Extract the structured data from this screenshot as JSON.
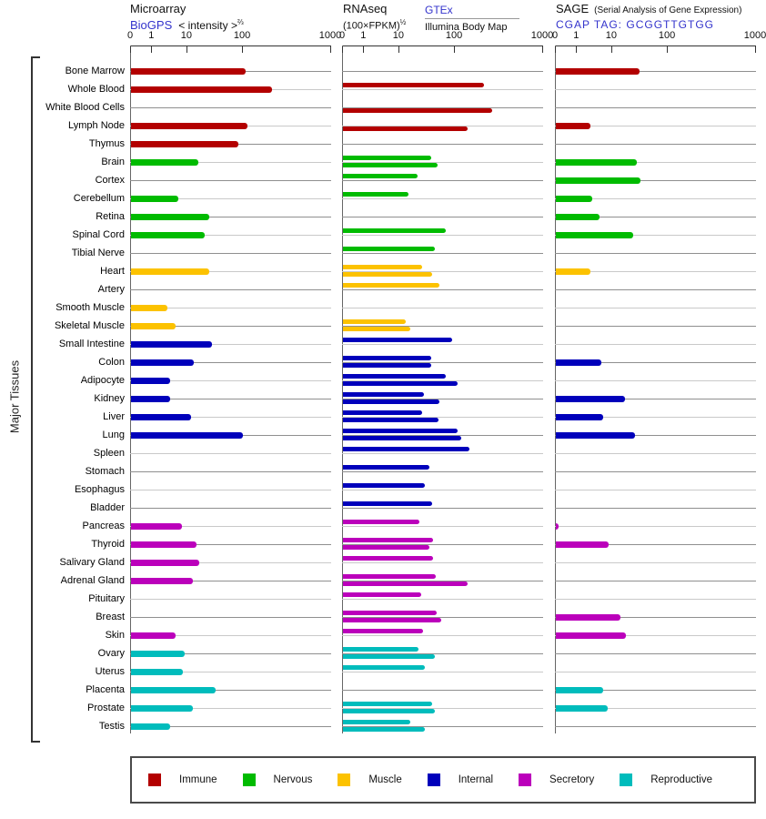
{
  "y_axis": {
    "title": "Major Tissues"
  },
  "panels": {
    "microarray": {
      "title": "Microarray",
      "source_link": "BioGPS",
      "measure": "< intensity >",
      "measure_exponent": "⅔"
    },
    "rnaseq": {
      "title": "RNAseq",
      "measure": "(100×FPKM)",
      "measure_exponent": "½",
      "source_link_1": "GTEx",
      "source_2": "Illumina Body Map"
    },
    "sage": {
      "title": "SAGE",
      "subtitle": "(Serial Analysis of Gene Expression)",
      "tag_link": "CGAP TAG: GCGGTTGTGG"
    }
  },
  "colors": {
    "link": "#3333cc",
    "axis": "#333333",
    "grid_dark": "#8f8f8f",
    "grid_light": "#c9c9c9",
    "groups": {
      "Immune": "#b30000",
      "Nervous": "#00bb00",
      "Muscle": "#fcc200",
      "Internal": "#0000bb",
      "Secretory": "#bb00bb",
      "Reproductive": "#00bcbc"
    }
  },
  "legend": [
    {
      "label": "Immune",
      "color": "#b30000"
    },
    {
      "label": "Nervous",
      "color": "#00bb00"
    },
    {
      "label": "Muscle",
      "color": "#fcc200"
    },
    {
      "label": "Internal",
      "color": "#0000bb"
    },
    {
      "label": "Secretory",
      "color": "#bb00bb"
    },
    {
      "label": "Reproductive",
      "color": "#00bcbc"
    }
  ],
  "chart_data": {
    "type": "bar",
    "orientation": "horizontal",
    "scale": "power (non-linear log-like axis)",
    "xlim": [
      0,
      1000
    ],
    "ticks": [
      0,
      1,
      10,
      100,
      1000
    ],
    "grid": true,
    "series_names": [
      "Microarray BioGPS",
      "RNAseq GTEx",
      "RNAseq Illumina Body Map",
      "SAGE"
    ],
    "tissues": [
      {
        "tissue": "Bone Marrow",
        "group": "Immune",
        "microarray": 110,
        "rnaseq_gtex": null,
        "rnaseq_illumina": null,
        "sage": 36
      },
      {
        "tissue": "Whole Blood",
        "group": "Immune",
        "microarray": 240,
        "rnaseq_gtex": 240,
        "rnaseq_illumina": null,
        "sage": null
      },
      {
        "tissue": "White Blood Cells",
        "group": "Immune",
        "microarray": null,
        "rnaseq_gtex": null,
        "rnaseq_illumina": 300,
        "sage": null
      },
      {
        "tissue": "Lymph Node",
        "group": "Immune",
        "microarray": 115,
        "rnaseq_gtex": null,
        "rnaseq_illumina": 150,
        "sage": 2.7
      },
      {
        "tissue": "Thymus",
        "group": "Immune",
        "microarray": 85,
        "rnaseq_gtex": null,
        "rnaseq_illumina": null,
        "sage": null
      },
      {
        "tissue": "Brain",
        "group": "Nervous",
        "microarray": 17,
        "rnaseq_gtex": 42,
        "rnaseq_illumina": 55,
        "sage": 32
      },
      {
        "tissue": "Cortex",
        "group": "Nervous",
        "microarray": null,
        "rnaseq_gtex": 24,
        "rnaseq_illumina": null,
        "sage": 37
      },
      {
        "tissue": "Cerebellum",
        "group": "Nervous",
        "microarray": 6,
        "rnaseq_gtex": 16,
        "rnaseq_illumina": null,
        "sage": 3
      },
      {
        "tissue": "Retina",
        "group": "Nervous",
        "microarray": 28,
        "rnaseq_gtex": null,
        "rnaseq_illumina": null,
        "sage": 5
      },
      {
        "tissue": "Spinal Cord",
        "group": "Nervous",
        "microarray": 23,
        "rnaseq_gtex": 74,
        "rnaseq_illumina": null,
        "sage": 27
      },
      {
        "tissue": "Tibial Nerve",
        "group": "Nervous",
        "microarray": null,
        "rnaseq_gtex": 49,
        "rnaseq_illumina": null,
        "sage": null
      },
      {
        "tissue": "Heart",
        "group": "Muscle",
        "microarray": 28,
        "rnaseq_gtex": 29,
        "rnaseq_illumina": 44,
        "sage": 2.8
      },
      {
        "tissue": "Artery",
        "group": "Muscle",
        "microarray": null,
        "rnaseq_gtex": 58,
        "rnaseq_illumina": null,
        "sage": null
      },
      {
        "tissue": "Smooth Muscle",
        "group": "Muscle",
        "microarray": 3,
        "rnaseq_gtex": null,
        "rnaseq_illumina": null,
        "sage": null
      },
      {
        "tissue": "Skeletal Muscle",
        "group": "Muscle",
        "microarray": 5.3,
        "rnaseq_gtex": 14,
        "rnaseq_illumina": 17,
        "sage": null
      },
      {
        "tissue": "Small Intestine",
        "group": "Internal",
        "microarray": 32,
        "rnaseq_gtex": 90,
        "rnaseq_illumina": null,
        "sage": null
      },
      {
        "tissue": "Colon",
        "group": "Internal",
        "microarray": 14,
        "rnaseq_gtex": 42,
        "rnaseq_illumina": 42,
        "sage": 5.6
      },
      {
        "tissue": "Adipocyte",
        "group": "Internal",
        "microarray": 3.7,
        "rnaseq_gtex": 74,
        "rnaseq_illumina": 110,
        "sage": null
      },
      {
        "tissue": "Kidney",
        "group": "Internal",
        "microarray": 3.6,
        "rnaseq_gtex": 32,
        "rnaseq_illumina": 58,
        "sage": 19
      },
      {
        "tissue": "Liver",
        "group": "Internal",
        "microarray": 12,
        "rnaseq_gtex": 29,
        "rnaseq_illumina": 57,
        "sage": 6
      },
      {
        "tissue": "Lung",
        "group": "Internal",
        "microarray": 100,
        "rnaseq_gtex": 110,
        "rnaseq_illumina": 124,
        "sage": 29
      },
      {
        "tissue": "Spleen",
        "group": "Internal",
        "microarray": null,
        "rnaseq_gtex": 160,
        "rnaseq_illumina": null,
        "sage": null
      },
      {
        "tissue": "Stomach",
        "group": "Internal",
        "microarray": null,
        "rnaseq_gtex": 39,
        "rnaseq_illumina": null,
        "sage": null
      },
      {
        "tissue": "Esophagus",
        "group": "Internal",
        "microarray": null,
        "rnaseq_gtex": 33,
        "rnaseq_illumina": null,
        "sage": null
      },
      {
        "tissue": "Bladder",
        "group": "Internal",
        "microarray": null,
        "rnaseq_gtex": 44,
        "rnaseq_illumina": null,
        "sage": null
      },
      {
        "tissue": "Pancreas",
        "group": "Secretory",
        "microarray": 7.4,
        "rnaseq_gtex": 26,
        "rnaseq_illumina": null,
        "sage": 0.15
      },
      {
        "tissue": "Thyroid",
        "group": "Secretory",
        "microarray": 16,
        "rnaseq_gtex": 45,
        "rnaseq_illumina": 39,
        "sage": 8.4
      },
      {
        "tissue": "Salivary Gland",
        "group": "Secretory",
        "microarray": 18,
        "rnaseq_gtex": 46,
        "rnaseq_illumina": null,
        "sage": null
      },
      {
        "tissue": "Adrenal Gland",
        "group": "Secretory",
        "microarray": 13,
        "rnaseq_gtex": 50,
        "rnaseq_illumina": 150,
        "sage": null
      },
      {
        "tissue": "Pituitary",
        "group": "Secretory",
        "microarray": null,
        "rnaseq_gtex": 28,
        "rnaseq_illumina": null,
        "sage": null
      },
      {
        "tissue": "Breast",
        "group": "Secretory",
        "microarray": null,
        "rnaseq_gtex": 52,
        "rnaseq_illumina": 63,
        "sage": 15
      },
      {
        "tissue": "Skin",
        "group": "Secretory",
        "microarray": 5.2,
        "rnaseq_gtex": 31,
        "rnaseq_illumina": null,
        "sage": 20
      },
      {
        "tissue": "Ovary",
        "group": "Reproductive",
        "microarray": 8.7,
        "rnaseq_gtex": 25,
        "rnaseq_illumina": 49,
        "sage": null
      },
      {
        "tissue": "Uterus",
        "group": "Reproductive",
        "microarray": 8,
        "rnaseq_gtex": 33,
        "rnaseq_illumina": null,
        "sage": null
      },
      {
        "tissue": "Placenta",
        "group": "Reproductive",
        "microarray": 37,
        "rnaseq_gtex": null,
        "rnaseq_illumina": null,
        "sage": 6
      },
      {
        "tissue": "Prostate",
        "group": "Reproductive",
        "microarray": 13,
        "rnaseq_gtex": 44,
        "rnaseq_illumina": 49,
        "sage": 8
      },
      {
        "tissue": "Testis",
        "group": "Reproductive",
        "microarray": 3.6,
        "rnaseq_gtex": 17,
        "rnaseq_illumina": 33,
        "sage": null
      }
    ]
  }
}
